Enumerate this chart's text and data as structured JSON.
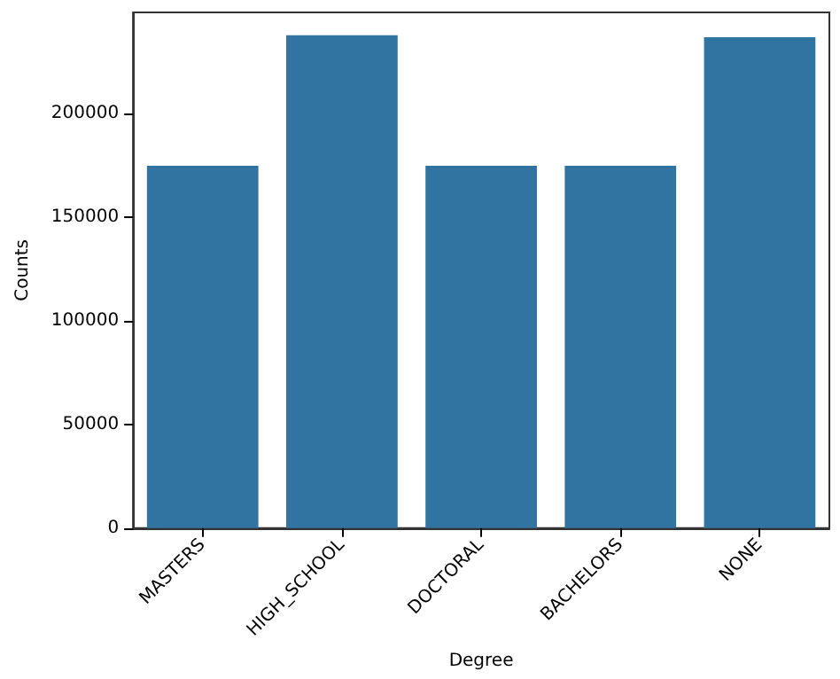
{
  "chart_data": {
    "type": "bar",
    "xlabel": "Degree",
    "ylabel": "Counts",
    "categories": [
      "MASTERS",
      "HIGH_SCHOOL",
      "DOCTORAL",
      "BACHELORS",
      "NONE"
    ],
    "values": [
      175000,
      238000,
      175000,
      175000,
      237000
    ],
    "color": "#3274a1",
    "ylim": [
      0,
      249000
    ],
    "yticks": [
      0,
      50000,
      100000,
      150000,
      200000
    ],
    "grid": false
  }
}
